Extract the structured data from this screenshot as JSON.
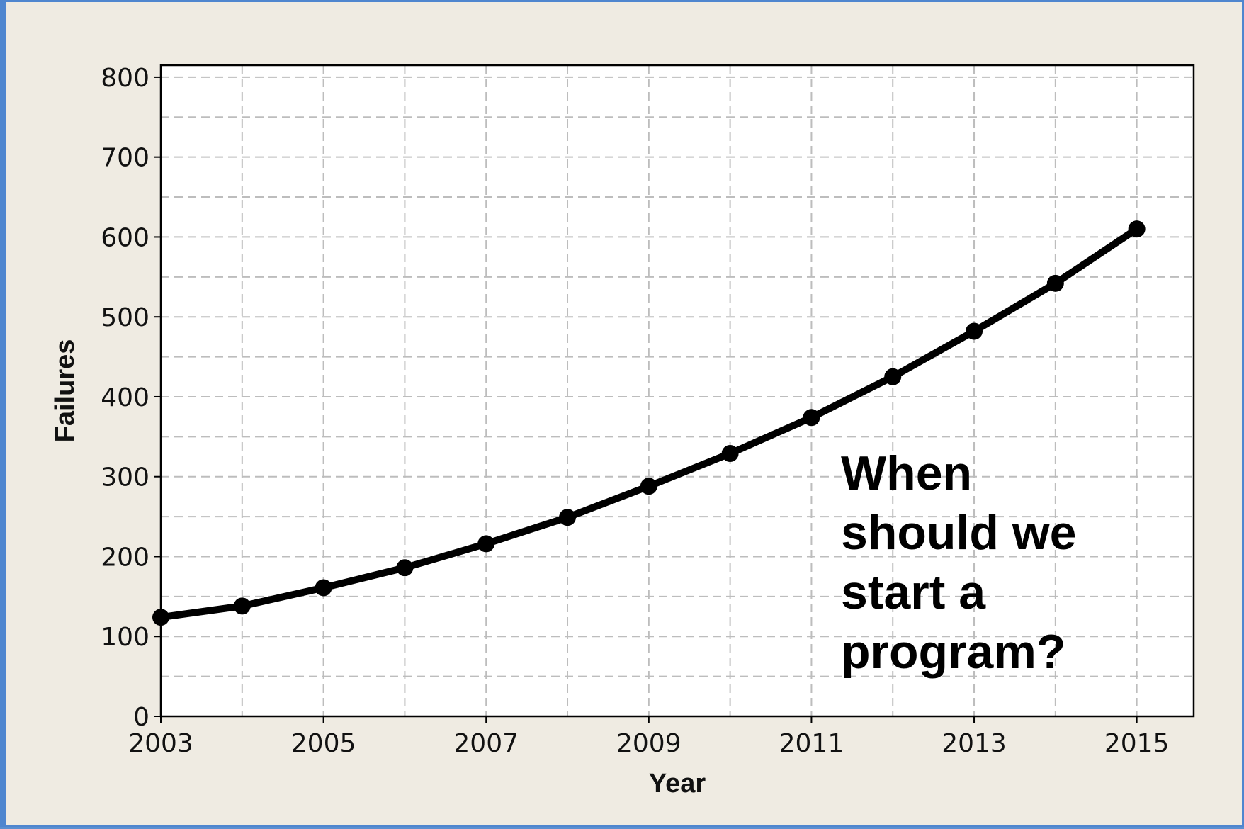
{
  "chart_data": {
    "type": "line",
    "title": "",
    "xlabel": "Year",
    "ylabel": "Failures",
    "xlim": [
      2003,
      2015.7
    ],
    "ylim": [
      0,
      815
    ],
    "xticks": [
      "2003",
      "2005",
      "2007",
      "2009",
      "2011",
      "2013",
      "2015"
    ],
    "yticks": [
      "0",
      "100",
      "200",
      "300",
      "400",
      "500",
      "600",
      "700",
      "800"
    ],
    "grid": true,
    "x": [
      2003,
      2004,
      2005,
      2006,
      2007,
      2008,
      2009,
      2010,
      2011,
      2012,
      2013,
      2014,
      2015
    ],
    "series": [
      {
        "values": [
          124,
          138,
          161,
          186,
          216,
          249,
          288,
          329,
          374,
          425,
          482,
          542,
          610
        ],
        "color": "#000000"
      }
    ],
    "annotation": [
      "When",
      "should we",
      "start a",
      "program?"
    ]
  },
  "colors": {
    "background": "#efebe2",
    "plot_area": "#ffffff",
    "grid": "#bdbdbd",
    "border": "#4f86cf"
  }
}
